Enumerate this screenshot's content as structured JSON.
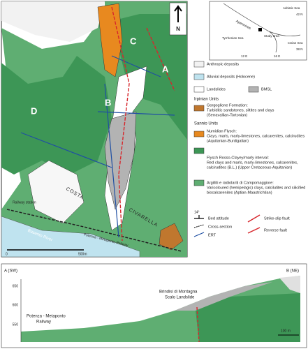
{
  "map": {
    "north": "N",
    "labels": [
      "A",
      "B",
      "C",
      "D"
    ],
    "railway_station": "Railway station",
    "river": "Basento River",
    "railway": "Potenza - Metaponto Railway",
    "place": [
      "COSTA",
      "CIVARELLA"
    ],
    "scale": [
      "0",
      "500m"
    ]
  },
  "inset": {
    "labels": [
      "Adriatic Sea",
      "42 N",
      "Apennines",
      "Tyrrhenian Sea",
      "Study area",
      "Ionian Sea",
      "38 N",
      "12 E",
      "16 E"
    ]
  },
  "legend": [
    "Anthropic deposits",
    "Alluvial deposits (Holocene)",
    "Landslides",
    "BMSL",
    "Irpinian Units",
    "Gorgoglione Formation:",
    "Turbiditic sandstones, siltites and clays",
    "(Serravallian-Tortonian)",
    "Sannio Units",
    "Numidian Flysch:",
    "Clays, marls, marly-limestones, calcarenites, calcirudites",
    "(Aquitanian-Burdigalian)",
    "Flysch Rosso-Clayey/marly interval:",
    "Red clays and marls, marly-limestones, calcarenites,",
    "calcirudites (B.L.) (Upper Cretaceous-Aquitanian)",
    "",
    "Argilliti e radiolariti di Campomaggiore:",
    "Varicoloured (hemipelagic) clays, calcilutites and silicified",
    "biocalcarenites (Aptian-Maastrichtian)",
    "",
    "14°",
    "Bed attitude",
    "Cross-section",
    "ERT",
    "Strike-slip fault",
    "Reverse fault"
  ],
  "section": {
    "start": "A (SW)",
    "end": "B (NE)",
    "ticks": [
      650,
      600,
      550
    ],
    "landslide": [
      "Brindisi di Montagna",
      "Scalo Landslide"
    ],
    "railway": [
      "Potenza - Metaponto",
      "Railway"
    ],
    "scale": "100 m"
  }
}
